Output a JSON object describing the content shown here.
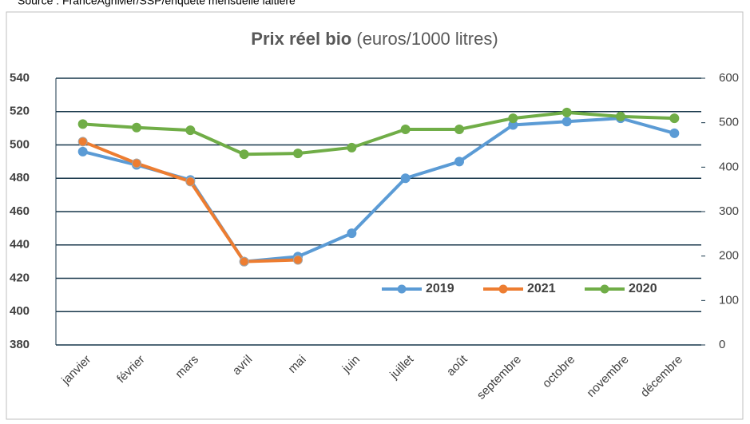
{
  "source": "Source : FranceAgriMer/SSP/enquête mensuelle laitière",
  "chart_data": {
    "type": "line",
    "title": "Prix réel bio",
    "subtitle": "(euros/1000 litres)",
    "categories": [
      "janvier",
      "février",
      "mars",
      "avril",
      "mai",
      "juin",
      "juillet",
      "août",
      "septembre",
      "octobre",
      "novembre",
      "décembre"
    ],
    "series": [
      {
        "name": "2019",
        "color": "#5b9bd5",
        "values": [
          496,
          488,
          479,
          430,
          433,
          447,
          480,
          490,
          512,
          514,
          516,
          507
        ]
      },
      {
        "name": "2021",
        "color": "#ed7d31",
        "values": [
          502,
          489,
          478,
          430,
          431,
          null,
          null,
          null,
          null,
          null,
          null,
          null
        ]
      },
      {
        "name": "2020",
        "color": "#70ad47",
        "axis": "y2",
        "values": [
          497,
          489,
          483,
          429,
          431,
          444,
          485,
          485,
          510,
          523,
          514,
          510
        ]
      }
    ],
    "ylim": [
      380,
      540
    ],
    "yticks": [
      380,
      400,
      420,
      440,
      460,
      480,
      500,
      520,
      540
    ],
    "y2lim": [
      0,
      600
    ],
    "y2ticks": [
      0,
      100,
      200,
      300,
      400,
      500,
      600
    ],
    "grid": true,
    "legend": "lower right"
  }
}
